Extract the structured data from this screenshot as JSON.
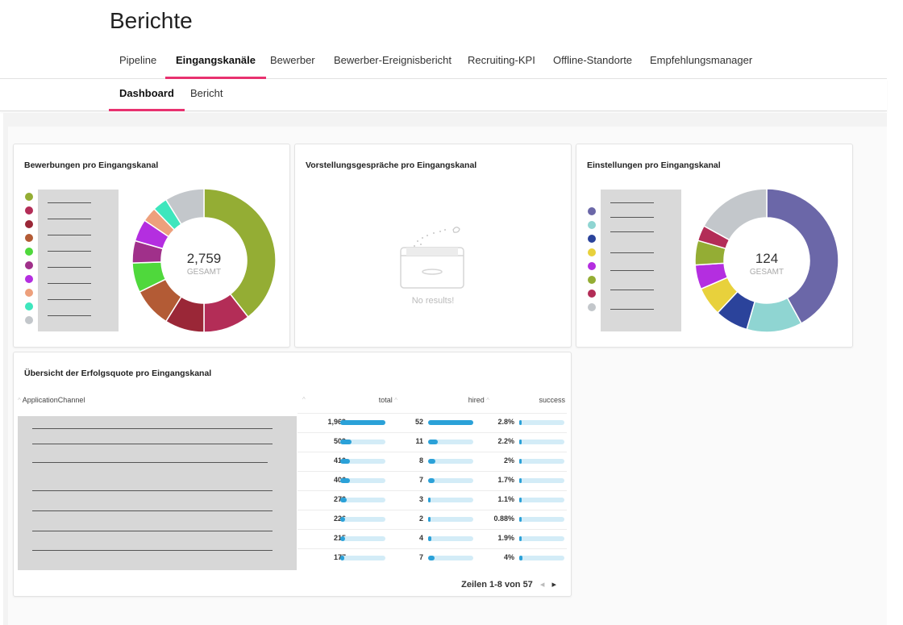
{
  "page_title": "Berichte",
  "main_tabs": [
    {
      "label": "Pipeline"
    },
    {
      "label": "Eingangskanäle",
      "active": true
    },
    {
      "label": "Bewerber"
    },
    {
      "label": "Bewerber-Ereignisbericht"
    },
    {
      "label": "Recruiting-KPI"
    },
    {
      "label": "Offline-Standorte"
    },
    {
      "label": "Empfehlungsmanager"
    }
  ],
  "sub_tabs": [
    {
      "label": "Dashboard",
      "active": true
    },
    {
      "label": "Bericht"
    }
  ],
  "colors": {
    "accent": "#e8316f",
    "bar": "#2ba1d8",
    "bar_track": "#d3ecf7"
  },
  "cards": {
    "applications": {
      "title": "Bewerbungen pro Eingangskanal",
      "total": "2,759",
      "total_label": "GESAMT"
    },
    "interviews": {
      "title": "Vorstellungsgespräche pro Eingangskanal",
      "empty_text": "No results!",
      "empty_icon": "empty-box-icon"
    },
    "hires": {
      "title": "Einstellungen pro Eingangskanal",
      "total": "124",
      "total_label": "GESAMT"
    },
    "success_table": {
      "title": "Übersicht der Erfolgsquote pro Eingangskanal",
      "columns": [
        "ApplicationChannel",
        "total",
        "hired",
        "success"
      ],
      "pager_text": "Zeilen 1-8 von 57"
    }
  },
  "chart_data": [
    {
      "type": "pie",
      "title": "Bewerbungen pro Eingangskanal",
      "total": 2759,
      "categories": [
        "",
        "",
        "",
        "",
        "",
        "",
        "",
        "",
        "",
        ""
      ],
      "values": [
        0.355,
        0.095,
        0.08,
        0.08,
        0.06,
        0.045,
        0.045,
        0.03,
        0.03,
        0.08
      ],
      "colors": [
        "#94ad34",
        "#b32d57",
        "#9a2737",
        "#b35b35",
        "#4fd83c",
        "#a0308a",
        "#b42ee0",
        "#eda07c",
        "#3ee6bd",
        "#c3c7cb"
      ]
    },
    {
      "type": "pie",
      "title": "Vorstellungsgespräche pro Eingangskanal",
      "values": []
    },
    {
      "type": "pie",
      "title": "Einstellungen pro Eingangskanal",
      "total": 124,
      "categories": [
        "",
        "",
        "",
        "",
        "",
        "",
        "",
        ""
      ],
      "values": [
        0.42,
        0.125,
        0.075,
        0.065,
        0.055,
        0.055,
        0.035,
        0.17
      ],
      "colors": [
        "#6b67a8",
        "#8fd5d2",
        "#2b439b",
        "#e8d13c",
        "#b42ee0",
        "#94ad34",
        "#b32d57",
        "#c3c7cb"
      ]
    },
    {
      "type": "table",
      "title": "Übersicht der Erfolgsquote pro Eingangskanal",
      "columns": [
        "ApplicationChannel",
        "total",
        "hired",
        "success"
      ],
      "rows": [
        {
          "total": 1969,
          "total_label": "1,969",
          "hired": 52,
          "hired_label": "52",
          "success": 2.8,
          "success_label": "2.8%"
        },
        {
          "total": 509,
          "total_label": "509",
          "hired": 11,
          "hired_label": "11",
          "success": 2.2,
          "success_label": "2.2%"
        },
        {
          "total": 410,
          "total_label": "410",
          "hired": 8,
          "hired_label": "8",
          "success": 2,
          "success_label": "2%"
        },
        {
          "total": 406,
          "total_label": "406",
          "hired": 7,
          "hired_label": "7",
          "success": 1.7,
          "success_label": "1.7%"
        },
        {
          "total": 272,
          "total_label": "272",
          "hired": 3,
          "hired_label": "3",
          "success": 1.1,
          "success_label": "1.1%"
        },
        {
          "total": 226,
          "total_label": "226",
          "hired": 2,
          "hired_label": "2",
          "success": 0.88,
          "success_label": "0.88%"
        },
        {
          "total": 215,
          "total_label": "215",
          "hired": 4,
          "hired_label": "4",
          "success": 1.9,
          "success_label": "1.9%"
        },
        {
          "total": 177,
          "total_label": "177",
          "hired": 7,
          "hired_label": "7",
          "success": 4,
          "success_label": "4%"
        }
      ],
      "max": {
        "total": 1969,
        "hired": 52,
        "success": 50
      }
    }
  ]
}
